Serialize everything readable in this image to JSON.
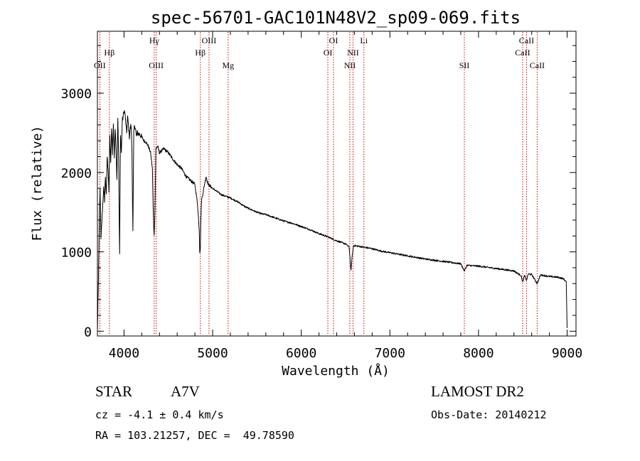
{
  "chart_data": {
    "type": "line",
    "title": "spec-56701-GAC101N48V2_sp09-069.fits",
    "xlabel": "Wavelength (Å)",
    "ylabel": "Flux (relative)",
    "xlim": [
      3700,
      9100
    ],
    "ylim": [
      -60,
      3780
    ],
    "grid": false,
    "legend": "none",
    "line_color": "#000000",
    "marker_color": "#cc0000",
    "x_ticks": [
      4000,
      5000,
      6000,
      7000,
      8000,
      9000
    ],
    "x_tick_labels": [
      "4000",
      "5000",
      "6000",
      "7000",
      "8000",
      "9000"
    ],
    "y_ticks": [
      0,
      1000,
      2000,
      3000
    ],
    "y_tick_labels": [
      "0",
      "1000",
      "2000",
      "3000"
    ],
    "lines": [
      {
        "name": "Hβ",
        "x": 3835,
        "row": 1
      },
      {
        "name": "OII",
        "x": 3727,
        "row": 2
      },
      {
        "name": "Hγ",
        "x": 4341,
        "row": 0
      },
      {
        "name": "OIII",
        "x": 4363,
        "row": 2
      },
      {
        "name": "OIII",
        "x": 4959,
        "row": 0
      },
      {
        "name": "Hβ",
        "x": 4861,
        "row": 1
      },
      {
        "name": "Mg",
        "x": 5175,
        "row": 2
      },
      {
        "name": "OI",
        "x": 6364,
        "row": 0
      },
      {
        "name": "OI",
        "x": 6300,
        "row": 1
      },
      {
        "name": "NII",
        "x": 6584,
        "row": 1
      },
      {
        "name": "NII",
        "x": 6548,
        "row": 2
      },
      {
        "name": "Li",
        "x": 6707,
        "row": 0
      },
      {
        "name": "SII",
        "x": 7840,
        "row": 2
      },
      {
        "name": "CaII",
        "x": 8542,
        "row": 0
      },
      {
        "name": "CaII",
        "x": 8498,
        "row": 1
      },
      {
        "name": "CaII",
        "x": 8662,
        "row": 2
      }
    ],
    "series": [
      {
        "x": [
          3700,
          3712,
          3720,
          3730,
          3740,
          3750,
          3760,
          3770,
          3780,
          3790,
          3800,
          3810,
          3820,
          3830,
          3840,
          3850,
          3860,
          3870,
          3880,
          3890,
          3900,
          3910,
          3920,
          3930,
          3940,
          3950,
          3960,
          3970,
          3980,
          3990,
          4000,
          4010,
          4020,
          4030,
          4040,
          4050,
          4060,
          4070,
          4080,
          4090,
          4100,
          4110,
          4120,
          4130,
          4140,
          4150,
          4175,
          4200,
          4225,
          4250,
          4275,
          4300,
          4320,
          4330,
          4340,
          4350,
          4360,
          4380,
          4400,
          4450,
          4500,
          4550,
          4600,
          4650,
          4700,
          4750,
          4800,
          4830,
          4850,
          4855,
          4861,
          4867,
          4875,
          4900,
          4925,
          4950,
          5000,
          5050,
          5100,
          5150,
          5200,
          5250,
          5300,
          5350,
          5400,
          5500,
          5550,
          5600,
          5700,
          5800,
          5900,
          6000,
          6100,
          6200,
          6300,
          6400,
          6500,
          6540,
          6555,
          6562,
          6570,
          6590,
          6650,
          6700,
          6800,
          6900,
          7000,
          7200,
          7400,
          7600,
          7800,
          7840,
          7870,
          8000,
          8200,
          8400,
          8480,
          8498,
          8520,
          8542,
          8560,
          8600,
          8662,
          8700,
          8800,
          8900,
          8960,
          8990,
          9000
        ],
        "y": [
          0,
          680,
          1300,
          1780,
          1150,
          1380,
          1600,
          1800,
          1650,
          1950,
          1700,
          2200,
          2050,
          1750,
          2450,
          2100,
          2550,
          2250,
          2600,
          2200,
          2550,
          2300,
          1900,
          2700,
          2150,
          950,
          2500,
          2250,
          2650,
          2700,
          2780,
          2750,
          2620,
          2500,
          2700,
          2600,
          2450,
          2550,
          2600,
          2250,
          1250,
          2500,
          2600,
          2550,
          2450,
          2500,
          2480,
          2450,
          2400,
          2380,
          2330,
          2250,
          2050,
          1500,
          1200,
          1550,
          2300,
          2330,
          2250,
          2300,
          2250,
          2170,
          2100,
          2050,
          1950,
          1900,
          1850,
          1600,
          1250,
          1000,
          1050,
          1400,
          1650,
          1800,
          1950,
          1850,
          1800,
          1760,
          1720,
          1700,
          1680,
          1650,
          1620,
          1580,
          1550,
          1500,
          1480,
          1470,
          1430,
          1390,
          1360,
          1320,
          1280,
          1230,
          1190,
          1140,
          1100,
          1060,
          850,
          760,
          900,
          1080,
          1070,
          1060,
          1040,
          1010,
          990,
          950,
          910,
          880,
          850,
          760,
          830,
          820,
          790,
          760,
          700,
          620,
          700,
          640,
          720,
          715,
          600,
          710,
          690,
          680,
          660,
          620,
          40
        ]
      }
    ]
  },
  "info": {
    "object_class": "STAR",
    "subclass": "A7V",
    "survey": "LAMOST DR2",
    "redshift": "cz = -4.1 ± 0.4 km/s",
    "obs_date": "Obs-Date: 20140212",
    "coords": "RA = 103.21257, DEC =  49.78590"
  }
}
